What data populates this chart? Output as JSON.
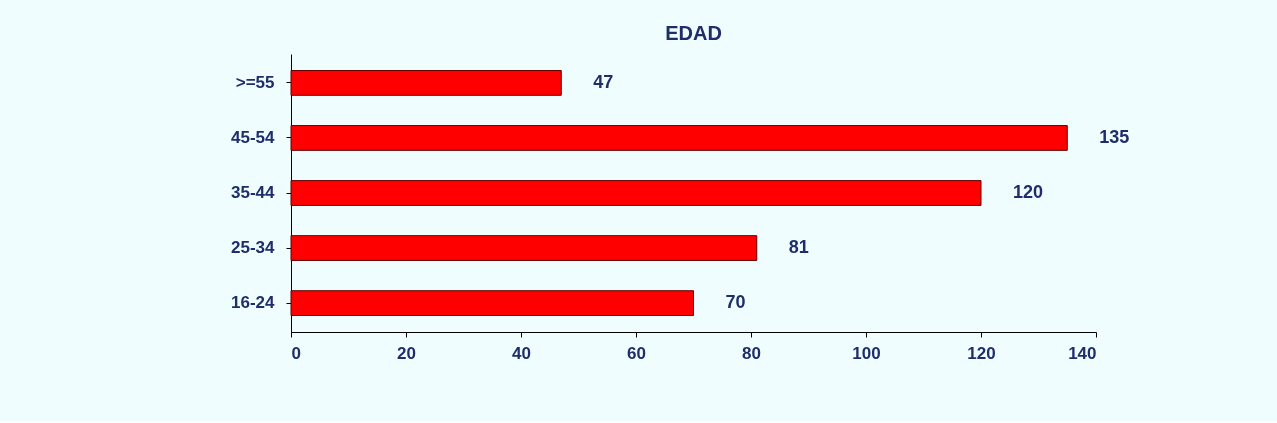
{
  "chart_data": {
    "type": "bar",
    "title": "EDAD",
    "orientation": "horizontal",
    "categories": [
      ">=55",
      "45-54",
      "35-44",
      "25-34",
      "16-24"
    ],
    "values": [
      47,
      135,
      120,
      81,
      70
    ],
    "color": "#ff0000",
    "xlim": [
      0,
      140
    ],
    "xticks": [
      0,
      20,
      40,
      60,
      80,
      100,
      120,
      140
    ],
    "data_labels": true,
    "grid": false
  }
}
